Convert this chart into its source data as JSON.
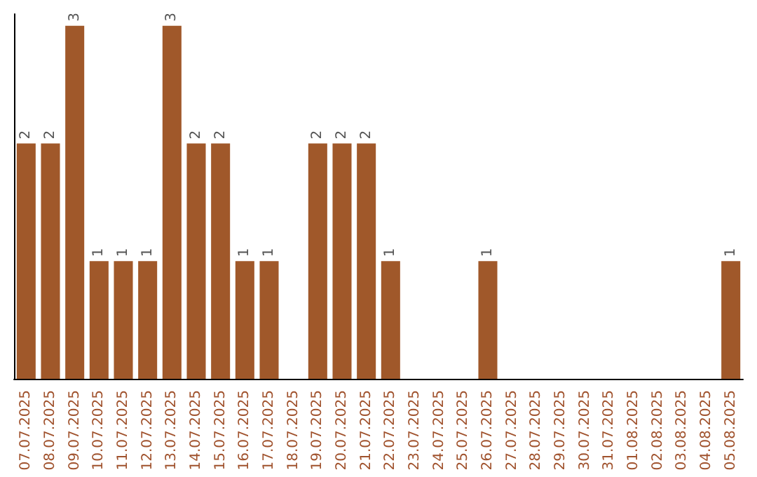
{
  "chart_data": {
    "type": "bar",
    "categories": [
      "07.07.2025",
      "08.07.2025",
      "09.07.2025",
      "10.07.2025",
      "11.07.2025",
      "12.07.2025",
      "13.07.2025",
      "14.07.2025",
      "15.07.2025",
      "16.07.2025",
      "17.07.2025",
      "18.07.2025",
      "19.07.2025",
      "20.07.2025",
      "21.07.2025",
      "22.07.2025",
      "23.07.2025",
      "24.07.2025",
      "25.07.2025",
      "26.07.2025",
      "27.07.2025",
      "28.07.2025",
      "29.07.2025",
      "30.07.2025",
      "31.07.2025",
      "01.08.2025",
      "02.08.2025",
      "03.08.2025",
      "04.08.2025",
      "05.08.2025"
    ],
    "values": [
      2,
      2,
      3,
      1,
      1,
      1,
      3,
      2,
      2,
      1,
      1,
      0,
      2,
      2,
      2,
      1,
      0,
      0,
      0,
      1,
      0,
      0,
      0,
      0,
      0,
      0,
      0,
      0,
      0,
      1
    ],
    "value_labels": [
      "2",
      "2",
      "3",
      "1",
      "1",
      "1",
      "3",
      "2",
      "2",
      "1",
      "1",
      null,
      "2",
      "2",
      "2",
      "1",
      null,
      null,
      null,
      "1",
      null,
      null,
      null,
      null,
      null,
      null,
      null,
      null,
      null,
      "1"
    ],
    "color": "#a0582a",
    "ylim": [
      0,
      3.1
    ],
    "tick_labels": "x"
  }
}
